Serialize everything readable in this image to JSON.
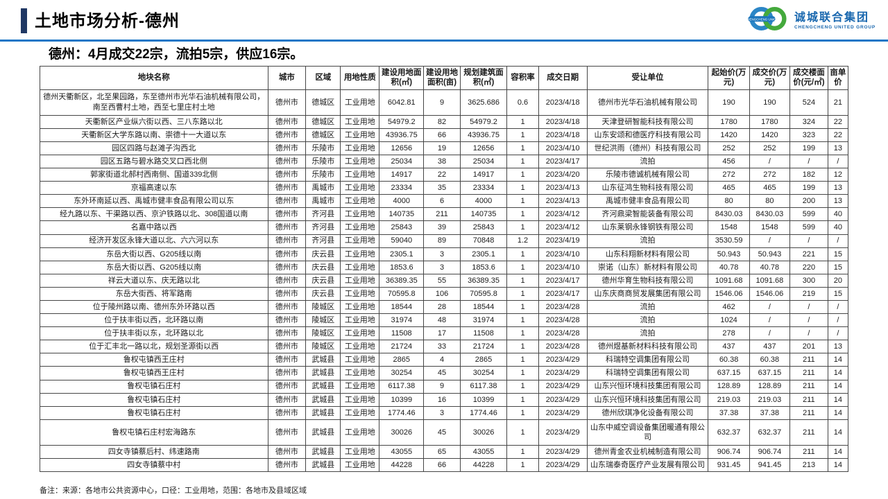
{
  "header": {
    "title": "土地市场分析-德州",
    "logo": {
      "cn": "诚城联合集团",
      "en": "CHENGCHENG UNITED GROUP",
      "ring_text": "CHENGCHENG UNION"
    }
  },
  "subtitle": "德州：4月成交22宗，流拍5宗，供应16宗。",
  "colors": {
    "accent_blue": "#1a76c6",
    "navy_bar": "#203864",
    "logo_blue": "#1766ae",
    "logo_green": "#44a93c"
  },
  "table": {
    "columns": [
      "地块名称",
      "城市",
      "区域",
      "用地性质",
      "建设用地面积(㎡)",
      "建设用地面积(亩)",
      "规划建筑面积(㎡)",
      "容积率",
      "成交日期",
      "受让单位",
      "起始价(万元)",
      "成交价(万元)",
      "成交楼面价(元/㎡)",
      "亩单价"
    ],
    "rows": [
      [
        "德州天衢新区，北至果园路，东至德州市光华石油机械有限公司，南至西曹村土地，西至七里庄村土地",
        "德州市",
        "德城区",
        "工业用地",
        "6042.81",
        "9",
        "3625.686",
        "0.6",
        "2023/4/18",
        "德州市光华石油机械有限公司",
        "190",
        "190",
        "524",
        "21"
      ],
      [
        "天衢新区产业纵六街以西、三八东路以北",
        "德州市",
        "德城区",
        "工业用地",
        "54979.2",
        "82",
        "54979.2",
        "1",
        "2023/4/18",
        "天津登研智能科技有限公司",
        "1780",
        "1780",
        "324",
        "22"
      ],
      [
        "天衢新区大学东路以南、崇德十一大道以东",
        "德州市",
        "德城区",
        "工业用地",
        "43936.75",
        "66",
        "43936.75",
        "1",
        "2023/4/18",
        "山东安颂和德医疗科技有限公司",
        "1420",
        "1420",
        "323",
        "22"
      ],
      [
        "园区四路与赵滩子沟西北",
        "德州市",
        "乐陵市",
        "工业用地",
        "12656",
        "19",
        "12656",
        "1",
        "2023/4/10",
        "世纪洪雨（德州）科技有限公司",
        "252",
        "252",
        "199",
        "13"
      ],
      [
        "园区五路与碧水路交叉口西北侧",
        "德州市",
        "乐陵市",
        "工业用地",
        "25034",
        "38",
        "25034",
        "1",
        "2023/4/17",
        "流拍",
        "456",
        "/",
        "/",
        "/"
      ],
      [
        "郭家街道北郝村西南侧、国道339北侧",
        "德州市",
        "乐陵市",
        "工业用地",
        "14917",
        "22",
        "14917",
        "1",
        "2023/4/20",
        "乐陵市德诚机械有限公司",
        "272",
        "272",
        "182",
        "12"
      ],
      [
        "京福高速以东",
        "德州市",
        "禹城市",
        "工业用地",
        "23334",
        "35",
        "23334",
        "1",
        "2023/4/13",
        "山东征鸿生物科技有限公司",
        "465",
        "465",
        "199",
        "13"
      ],
      [
        "东外环南延以西、禹城市健丰食品有限公司以东",
        "德州市",
        "禹城市",
        "工业用地",
        "4000",
        "6",
        "4000",
        "1",
        "2023/4/13",
        "禹城市健丰食品有限公司",
        "80",
        "80",
        "200",
        "13"
      ],
      [
        "经九路以东、干渠路以西、京沪铁路以北、308国道以南",
        "德州市",
        "齐河县",
        "工业用地",
        "140735",
        "211",
        "140735",
        "1",
        "2023/4/12",
        "齐河鼎梁智能装备有限公司",
        "8430.03",
        "8430.03",
        "599",
        "40"
      ],
      [
        "名嘉中路以西",
        "德州市",
        "齐河县",
        "工业用地",
        "25843",
        "39",
        "25843",
        "1",
        "2023/4/12",
        "山东莱钢永锋钢铁有限公司",
        "1548",
        "1548",
        "599",
        "40"
      ],
      [
        "经济开发区永锋大道以北、六六河以东",
        "德州市",
        "齐河县",
        "工业用地",
        "59040",
        "89",
        "70848",
        "1.2",
        "2023/4/19",
        "流拍",
        "3530.59",
        "/",
        "/",
        "/"
      ],
      [
        "东岳大街以西、G205线以南",
        "德州市",
        "庆云县",
        "工业用地",
        "2305.1",
        "3",
        "2305.1",
        "1",
        "2023/4/10",
        "山东科翔新材料有限公司",
        "50.943",
        "50.943",
        "221",
        "15"
      ],
      [
        "东岳大街以西、G205线以南",
        "德州市",
        "庆云县",
        "工业用地",
        "1853.6",
        "3",
        "1853.6",
        "1",
        "2023/4/10",
        "崇诺（山东）新材料有限公司",
        "40.78",
        "40.78",
        "220",
        "15"
      ],
      [
        "祥云大道以东、庆无路以北",
        "德州市",
        "庆云县",
        "工业用地",
        "36389.35",
        "55",
        "36389.35",
        "1",
        "2023/4/17",
        "德州华育生物科技有限公司",
        "1091.68",
        "1091.68",
        "300",
        "20"
      ],
      [
        "东岳大街西、将军路南",
        "德州市",
        "庆云县",
        "工业用地",
        "70595.8",
        "106",
        "70595.8",
        "1",
        "2023/4/17",
        "山东庆商商贸发展集团有限公司",
        "1546.06",
        "1546.06",
        "219",
        "15"
      ],
      [
        "位于陵州路以南、德州东外环路以西",
        "德州市",
        "陵城区",
        "工业用地",
        "18544",
        "28",
        "18544",
        "1",
        "2023/4/28",
        "流拍",
        "462",
        "/",
        "/",
        "/"
      ],
      [
        "位于扶丰街以西，北环路以南",
        "德州市",
        "陵城区",
        "工业用地",
        "31974",
        "48",
        "31974",
        "1",
        "2023/4/28",
        "流拍",
        "1024",
        "/",
        "/",
        "/"
      ],
      [
        "位于扶丰街以东，北环路以北",
        "德州市",
        "陵城区",
        "工业用地",
        "11508",
        "17",
        "11508",
        "1",
        "2023/4/28",
        "流拍",
        "278",
        "/",
        "/",
        "/"
      ],
      [
        "位于汇丰北一路以北，规划圣源街以西",
        "德州市",
        "陵城区",
        "工业用地",
        "21724",
        "33",
        "21724",
        "1",
        "2023/4/28",
        "德州煜基新材料科技有限公司",
        "437",
        "437",
        "201",
        "13"
      ],
      [
        "鲁权屯镇西王庄村",
        "德州市",
        "武城县",
        "工业用地",
        "2865",
        "4",
        "2865",
        "1",
        "2023/4/29",
        "科瑞特空调集团有限公司",
        "60.38",
        "60.38",
        "211",
        "14"
      ],
      [
        "鲁权屯镇西王庄村",
        "德州市",
        "武城县",
        "工业用地",
        "30254",
        "45",
        "30254",
        "1",
        "2023/4/29",
        "科瑞特空调集团有限公司",
        "637.15",
        "637.15",
        "211",
        "14"
      ],
      [
        "鲁权屯镇石庄村",
        "德州市",
        "武城县",
        "工业用地",
        "6117.38",
        "9",
        "6117.38",
        "1",
        "2023/4/29",
        "山东兴恒环境科技集团有限公司",
        "128.89",
        "128.89",
        "211",
        "14"
      ],
      [
        "鲁权屯镇石庄村",
        "德州市",
        "武城县",
        "工业用地",
        "10399",
        "16",
        "10399",
        "1",
        "2023/4/29",
        "山东兴恒环境科技集团有限公司",
        "219.03",
        "219.03",
        "211",
        "14"
      ],
      [
        "鲁权屯镇石庄村",
        "德州市",
        "武城县",
        "工业用地",
        "1774.46",
        "3",
        "1774.46",
        "1",
        "2023/4/29",
        "德州欣琪净化设备有限公司",
        "37.38",
        "37.38",
        "211",
        "14"
      ],
      [
        "鲁权屯镇石庄村宏海路东",
        "德州市",
        "武城县",
        "工业用地",
        "30026",
        "45",
        "30026",
        "1",
        "2023/4/29",
        "山东中威空调设备集团暖通有限公司",
        "632.37",
        "632.37",
        "211",
        "14"
      ],
      [
        "四女寺镇蔡后村、纬速路南",
        "德州市",
        "武城县",
        "工业用地",
        "43055",
        "65",
        "43055",
        "1",
        "2023/4/29",
        "德州青金农业机械制造有限公司",
        "906.74",
        "906.74",
        "211",
        "14"
      ],
      [
        "四女寺镇蔡中村",
        "德州市",
        "武城县",
        "工业用地",
        "44228",
        "66",
        "44228",
        "1",
        "2023/4/29",
        "山东瑞泰奇医疗产业发展有限公司",
        "931.45",
        "941.45",
        "213",
        "14"
      ]
    ]
  },
  "footnote": "备注：来源：各地市公共资源中心，口径：工业用地，范围：各地市及县域区域"
}
